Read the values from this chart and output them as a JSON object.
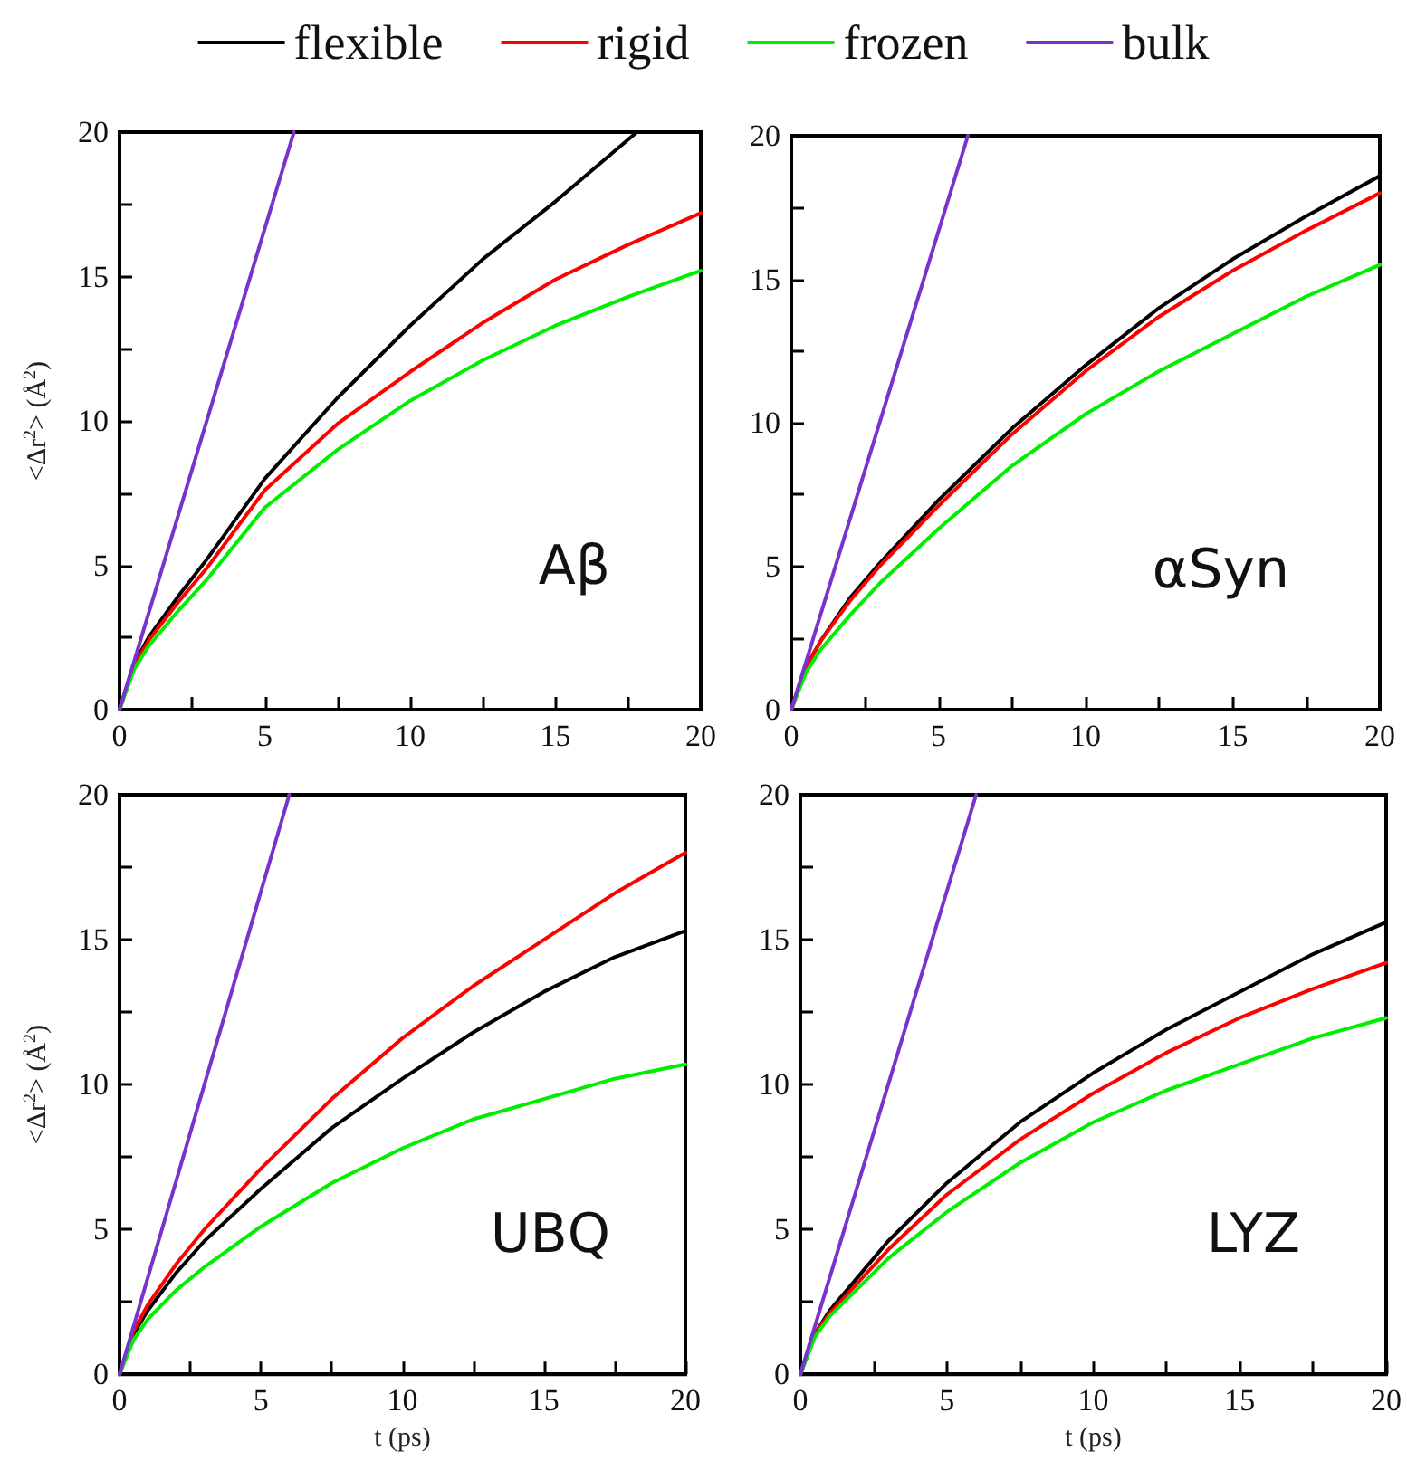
{
  "chart_data": [
    {
      "type": "line",
      "legend": "top",
      "ylabel": "<Δr$^{2}$> (Å$^{2}$)",
      "annotations": [
        "Aβ"
      ],
      "xlim": [
        0,
        20
      ],
      "ylim": [
        0,
        20
      ],
      "xticks": [
        0,
        {
          "value": 2.5,
          "label": null
        },
        5,
        {
          "value": 7.5,
          "label": null
        },
        10,
        {
          "value": 12.5,
          "label": null
        },
        15,
        {
          "value": 17.5,
          "label": null
        },
        20
      ],
      "yticks": [
        0,
        {
          "value": 2.5,
          "label": null
        },
        5,
        {
          "value": 7.5,
          "label": null
        },
        10,
        {
          "value": 12.5,
          "label": null
        },
        15,
        {
          "value": 17.5,
          "label": null
        },
        20
      ],
      "series": [
        {
          "name": "flexible",
          "color": "#000000",
          "x": [
            0,
            0.5,
            1,
            2,
            3,
            5,
            7.5,
            10,
            12.5,
            15,
            17.8
          ],
          "values": [
            0,
            1.6,
            2.5,
            3.9,
            5.2,
            8.0,
            10.8,
            13.3,
            15.6,
            17.6,
            20
          ]
        },
        {
          "name": "rigid",
          "color": "#ff0000",
          "x": [
            0,
            0.5,
            1,
            2,
            3,
            5,
            7.5,
            10,
            12.5,
            15,
            17.5,
            20
          ],
          "values": [
            0,
            1.5,
            2.4,
            3.7,
            4.9,
            7.6,
            9.9,
            11.7,
            13.4,
            14.9,
            16.1,
            17.2
          ]
        },
        {
          "name": "frozen",
          "color": "#00ee00",
          "x": [
            0,
            0.5,
            1,
            2,
            3,
            5,
            7.5,
            10,
            12.5,
            15,
            17.5,
            20
          ],
          "values": [
            0,
            1.4,
            2.2,
            3.4,
            4.5,
            7.0,
            9.0,
            10.7,
            12.1,
            13.3,
            14.3,
            15.2
          ]
        },
        {
          "name": "bulk",
          "color": "#7733cc",
          "x": [
            0,
            6
          ],
          "values": [
            0,
            20
          ]
        }
      ]
    },
    {
      "type": "line",
      "annotations": [
        "αSyn"
      ],
      "xlim": [
        0,
        20
      ],
      "ylim": [
        0,
        20
      ],
      "xticks": [
        0,
        {
          "value": 2.5,
          "label": null
        },
        5,
        {
          "value": 7.5,
          "label": null
        },
        10,
        {
          "value": 12.5,
          "label": null
        },
        15,
        {
          "value": 17.5,
          "label": null
        },
        20
      ],
      "yticks": [
        0,
        {
          "value": 2.5,
          "label": null
        },
        5,
        {
          "value": 7.5,
          "label": null
        },
        10,
        {
          "value": 12.5,
          "label": null
        },
        15,
        {
          "value": 17.5,
          "label": null
        },
        20
      ],
      "series": [
        {
          "color": "#000000",
          "x": [
            0,
            0.5,
            1,
            2,
            3,
            5,
            7.5,
            10,
            12.5,
            15,
            17.5,
            20
          ],
          "values": [
            0,
            1.5,
            2.4,
            3.9,
            5.1,
            7.3,
            9.8,
            12.0,
            14.0,
            15.7,
            17.2,
            18.6
          ]
        },
        {
          "color": "#ff0000",
          "x": [
            0,
            0.5,
            1,
            2,
            3,
            5,
            7.5,
            10,
            12.5,
            15,
            17.5,
            20
          ],
          "values": [
            0,
            1.5,
            2.4,
            3.8,
            5.0,
            7.1,
            9.6,
            11.8,
            13.7,
            15.3,
            16.7,
            18.0
          ]
        },
        {
          "color": "#00ee00",
          "x": [
            0,
            0.5,
            1,
            2,
            3,
            5,
            7.5,
            10,
            12.5,
            15,
            17.5,
            20
          ],
          "values": [
            0,
            1.3,
            2.1,
            3.3,
            4.4,
            6.3,
            8.5,
            10.3,
            11.8,
            13.1,
            14.4,
            15.5
          ]
        },
        {
          "color": "#7733cc",
          "x": [
            0,
            6
          ],
          "values": [
            0,
            20
          ]
        }
      ]
    },
    {
      "type": "line",
      "ylabel": "<Δr$^{2}$> (Å$^{2}$)",
      "xlabel": "t (ps)",
      "annotations": [
        "UBQ"
      ],
      "xlim": [
        0,
        20
      ],
      "ylim": [
        0,
        20
      ],
      "xticks": [
        0,
        {
          "value": 2.5,
          "label": null
        },
        5,
        {
          "value": 7.5,
          "label": null
        },
        10,
        {
          "value": 12.5,
          "label": null
        },
        15,
        {
          "value": 17.5,
          "label": null
        },
        20
      ],
      "yticks": [
        0,
        {
          "value": 2.5,
          "label": null
        },
        5,
        {
          "value": 7.5,
          "label": null
        },
        10,
        {
          "value": 12.5,
          "label": null
        },
        15,
        {
          "value": 17.5,
          "label": null
        },
        20
      ],
      "series": [
        {
          "color": "#000000",
          "x": [
            0,
            0.5,
            1,
            2,
            3,
            5,
            7.5,
            10,
            12.5,
            15,
            17.5,
            20
          ],
          "values": [
            0,
            1.4,
            2.2,
            3.5,
            4.6,
            6.4,
            8.5,
            10.2,
            11.8,
            13.2,
            14.4,
            15.3
          ]
        },
        {
          "color": "#ff0000",
          "x": [
            0,
            0.5,
            1,
            2,
            3,
            5,
            7.5,
            10,
            12.5,
            15,
            17.5,
            20
          ],
          "values": [
            0,
            1.5,
            2.4,
            3.8,
            5.0,
            7.1,
            9.5,
            11.6,
            13.4,
            15.0,
            16.6,
            18.0
          ]
        },
        {
          "color": "#00ee00",
          "x": [
            0,
            0.5,
            1,
            2,
            3,
            5,
            7.5,
            10,
            12.5,
            15,
            17.5,
            20
          ],
          "values": [
            0,
            1.2,
            1.9,
            2.9,
            3.7,
            5.1,
            6.6,
            7.8,
            8.8,
            9.5,
            10.2,
            10.7
          ]
        },
        {
          "color": "#7733cc",
          "x": [
            0,
            6
          ],
          "values": [
            0,
            20
          ]
        }
      ]
    },
    {
      "type": "line",
      "xlabel": "t (ps)",
      "annotations": [
        "LYZ"
      ],
      "xlim": [
        0,
        20
      ],
      "ylim": [
        0,
        20
      ],
      "xticks": [
        0,
        {
          "value": 2.5,
          "label": null
        },
        5,
        {
          "value": 7.5,
          "label": null
        },
        10,
        {
          "value": 12.5,
          "label": null
        },
        15,
        {
          "value": 17.5,
          "label": null
        },
        20
      ],
      "yticks": [
        0,
        {
          "value": 2.5,
          "label": null
        },
        5,
        {
          "value": 7.5,
          "label": null
        },
        10,
        {
          "value": 12.5,
          "label": null
        },
        15,
        {
          "value": 17.5,
          "label": null
        },
        20
      ],
      "series": [
        {
          "color": "#000000",
          "x": [
            0,
            0.5,
            1,
            2,
            3,
            5,
            7.5,
            10,
            12.5,
            15,
            17.5,
            20
          ],
          "values": [
            0,
            1.4,
            2.2,
            3.4,
            4.6,
            6.6,
            8.7,
            10.4,
            11.9,
            13.2,
            14.5,
            15.6
          ]
        },
        {
          "color": "#ff0000",
          "x": [
            0,
            0.5,
            1,
            2,
            3,
            5,
            7.5,
            10,
            12.5,
            15,
            17.5,
            20
          ],
          "values": [
            0,
            1.4,
            2.1,
            3.2,
            4.3,
            6.2,
            8.1,
            9.7,
            11.1,
            12.3,
            13.3,
            14.2
          ]
        },
        {
          "color": "#00ee00",
          "x": [
            0,
            0.5,
            1,
            2,
            3,
            5,
            7.5,
            10,
            12.5,
            15,
            17.5,
            20
          ],
          "values": [
            0,
            1.3,
            2.0,
            3.0,
            4.0,
            5.6,
            7.3,
            8.7,
            9.8,
            10.7,
            11.6,
            12.3
          ]
        },
        {
          "color": "#7733cc",
          "x": [
            0,
            6
          ],
          "values": [
            0,
            20
          ]
        }
      ]
    }
  ]
}
